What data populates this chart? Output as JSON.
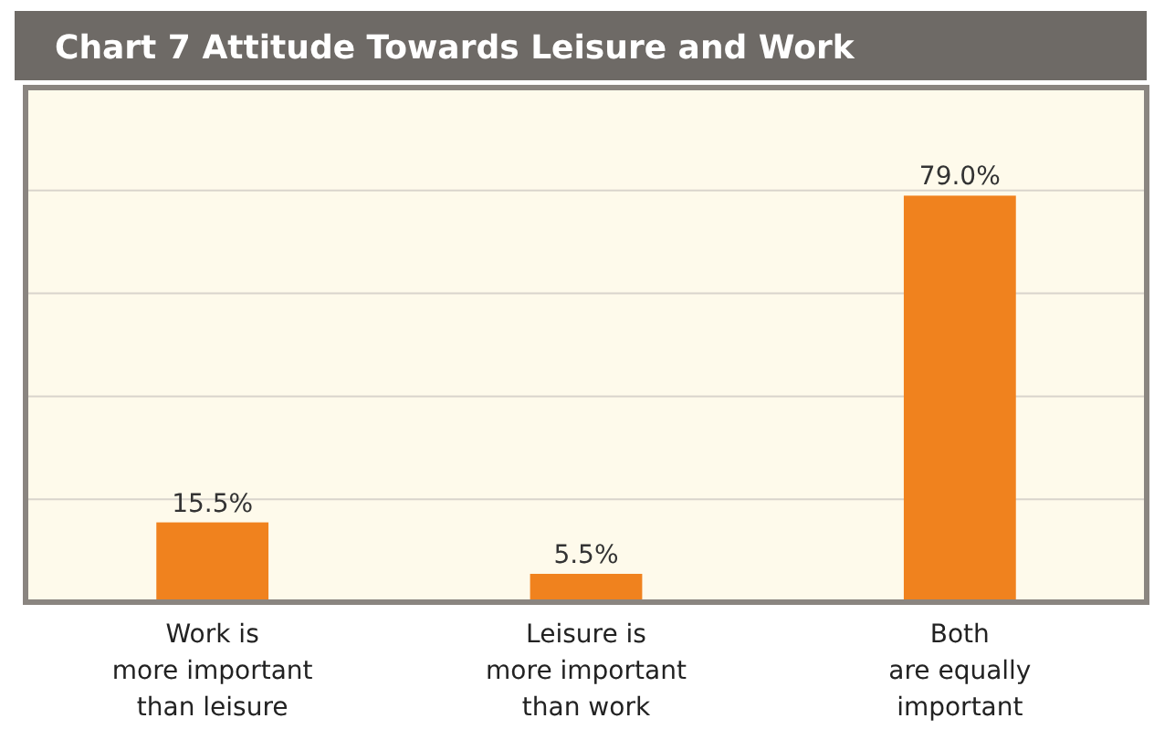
{
  "chart_data": {
    "type": "bar",
    "title": "Chart 7  Attitude Towards Leisure and Work",
    "categories": [
      "Work is\nmore important\nthan leisure",
      "Leisure is\nmore important\nthan work",
      "Both\nare equally\nimportant"
    ],
    "values": [
      15.5,
      5.5,
      79.0
    ],
    "value_labels": [
      "15.5%",
      "5.5%",
      "79.0%"
    ],
    "color": "#f0821e",
    "ylim": [
      0,
      100
    ],
    "yticks": [
      {
        "value": 0,
        "label": null
      },
      {
        "value": 20,
        "label": null
      },
      {
        "value": 40,
        "label": null
      },
      {
        "value": 60,
        "label": null
      },
      {
        "value": 80,
        "label": null
      },
      {
        "value": 100,
        "label": null
      }
    ],
    "grid": "y",
    "tick_labels": "x"
  }
}
